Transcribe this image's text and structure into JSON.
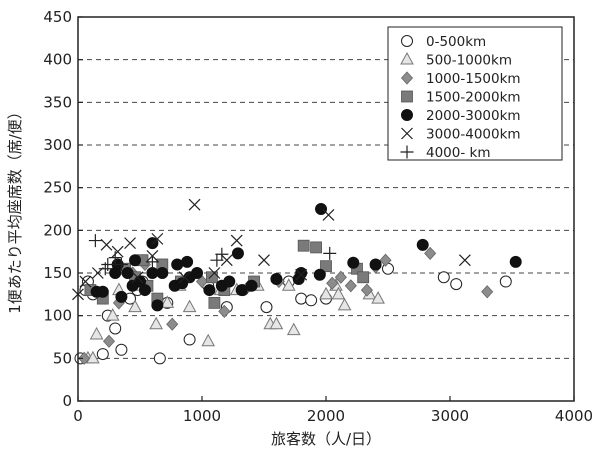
{
  "chart_data": {
    "type": "scatter",
    "title": "",
    "xlabel": "旅客数（人/日）",
    "ylabel": "1便あたり平均座席数（席/便）",
    "xlim": [
      0,
      4000
    ],
    "ylim": [
      0,
      450
    ],
    "xticks": [
      0,
      1000,
      2000,
      3000,
      4000
    ],
    "yticks": [
      0,
      50,
      100,
      150,
      200,
      250,
      300,
      350,
      400,
      450
    ],
    "grid": "horizontal-dashed",
    "legend_position": "top-right",
    "series": [
      {
        "name": "0-500km",
        "marker": "circle-open",
        "points": [
          [
            20,
            50
          ],
          [
            60,
            130
          ],
          [
            80,
            140
          ],
          [
            120,
            125
          ],
          [
            200,
            55
          ],
          [
            240,
            100
          ],
          [
            300,
            85
          ],
          [
            350,
            60
          ],
          [
            420,
            120
          ],
          [
            480,
            130
          ],
          [
            520,
            140
          ],
          [
            660,
            50
          ],
          [
            720,
            115
          ],
          [
            900,
            72
          ],
          [
            1050,
            135
          ],
          [
            1200,
            110
          ],
          [
            1330,
            130
          ],
          [
            1520,
            110
          ],
          [
            1700,
            140
          ],
          [
            1800,
            120
          ],
          [
            1880,
            118
          ],
          [
            2000,
            120
          ],
          [
            2500,
            155
          ],
          [
            2950,
            145
          ],
          [
            3050,
            137
          ],
          [
            3450,
            140
          ]
        ]
      },
      {
        "name": "500-1000km",
        "marker": "triangle-open",
        "points": [
          [
            80,
            50
          ],
          [
            120,
            50
          ],
          [
            150,
            78
          ],
          [
            280,
            100
          ],
          [
            330,
            130
          ],
          [
            460,
            110
          ],
          [
            520,
            135
          ],
          [
            630,
            90
          ],
          [
            720,
            115
          ],
          [
            820,
            135
          ],
          [
            900,
            110
          ],
          [
            1050,
            70
          ],
          [
            1150,
            130
          ],
          [
            1280,
            130
          ],
          [
            1450,
            135
          ],
          [
            1550,
            90
          ],
          [
            1600,
            90
          ],
          [
            1700,
            135
          ],
          [
            1740,
            83
          ],
          [
            2000,
            125
          ],
          [
            2080,
            135
          ],
          [
            2100,
            125
          ],
          [
            2150,
            112
          ],
          [
            2350,
            125
          ],
          [
            2420,
            120
          ]
        ]
      },
      {
        "name": "1000-1500km",
        "marker": "diamond",
        "points": [
          [
            50,
            50
          ],
          [
            250,
            70
          ],
          [
            330,
            115
          ],
          [
            440,
            150
          ],
          [
            540,
            160
          ],
          [
            760,
            90
          ],
          [
            1000,
            140
          ],
          [
            1180,
            105
          ],
          [
            1380,
            135
          ],
          [
            1620,
            140
          ],
          [
            2050,
            138
          ],
          [
            2120,
            145
          ],
          [
            2200,
            135
          ],
          [
            2330,
            130
          ],
          [
            2400,
            157
          ],
          [
            2480,
            165
          ],
          [
            2840,
            173
          ],
          [
            3300,
            128
          ]
        ]
      },
      {
        "name": "1500-2000km",
        "marker": "square",
        "points": [
          [
            100,
            130
          ],
          [
            200,
            120
          ],
          [
            380,
            155
          ],
          [
            460,
            145
          ],
          [
            520,
            165
          ],
          [
            560,
            135
          ],
          [
            640,
            120
          ],
          [
            680,
            160
          ],
          [
            830,
            140
          ],
          [
            1080,
            145
          ],
          [
            1100,
            115
          ],
          [
            1180,
            130
          ],
          [
            1420,
            140
          ],
          [
            1820,
            182
          ],
          [
            1920,
            180
          ],
          [
            2000,
            158
          ],
          [
            2250,
            155
          ],
          [
            2300,
            145
          ]
        ]
      },
      {
        "name": "2000-3000km",
        "marker": "circle-filled",
        "points": [
          [
            150,
            128
          ],
          [
            200,
            128
          ],
          [
            300,
            150
          ],
          [
            320,
            160
          ],
          [
            350,
            122
          ],
          [
            400,
            150
          ],
          [
            440,
            135
          ],
          [
            460,
            165
          ],
          [
            500,
            140
          ],
          [
            540,
            130
          ],
          [
            600,
            150
          ],
          [
            600,
            185
          ],
          [
            640,
            112
          ],
          [
            680,
            150
          ],
          [
            780,
            135
          ],
          [
            800,
            160
          ],
          [
            840,
            138
          ],
          [
            880,
            163
          ],
          [
            900,
            145
          ],
          [
            960,
            150
          ],
          [
            1060,
            130
          ],
          [
            1160,
            135
          ],
          [
            1220,
            140
          ],
          [
            1290,
            173
          ],
          [
            1320,
            130
          ],
          [
            1400,
            135
          ],
          [
            1600,
            143
          ],
          [
            1780,
            143
          ],
          [
            1800,
            150
          ],
          [
            1950,
            148
          ],
          [
            1960,
            225
          ],
          [
            2220,
            162
          ],
          [
            2400,
            160
          ],
          [
            2780,
            183
          ],
          [
            3530,
            163
          ]
        ]
      },
      {
        "name": "3000-4000km",
        "marker": "x",
        "points": [
          [
            0,
            125
          ],
          [
            60,
            140
          ],
          [
            160,
            150
          ],
          [
            230,
            183
          ],
          [
            320,
            175
          ],
          [
            420,
            185
          ],
          [
            480,
            145
          ],
          [
            600,
            170
          ],
          [
            640,
            190
          ],
          [
            860,
            145
          ],
          [
            940,
            230
          ],
          [
            1100,
            150
          ],
          [
            1200,
            165
          ],
          [
            1280,
            188
          ],
          [
            1500,
            165
          ],
          [
            1800,
            148
          ],
          [
            2020,
            218
          ],
          [
            3120,
            165
          ]
        ]
      },
      {
        "name": "4000- km",
        "marker": "plus",
        "points": [
          [
            140,
            188
          ],
          [
            220,
            155
          ],
          [
            240,
            160
          ],
          [
            300,
            168
          ],
          [
            350,
            160
          ],
          [
            600,
            163
          ],
          [
            1120,
            165
          ],
          [
            1160,
            172
          ],
          [
            2030,
            173
          ]
        ]
      }
    ]
  }
}
